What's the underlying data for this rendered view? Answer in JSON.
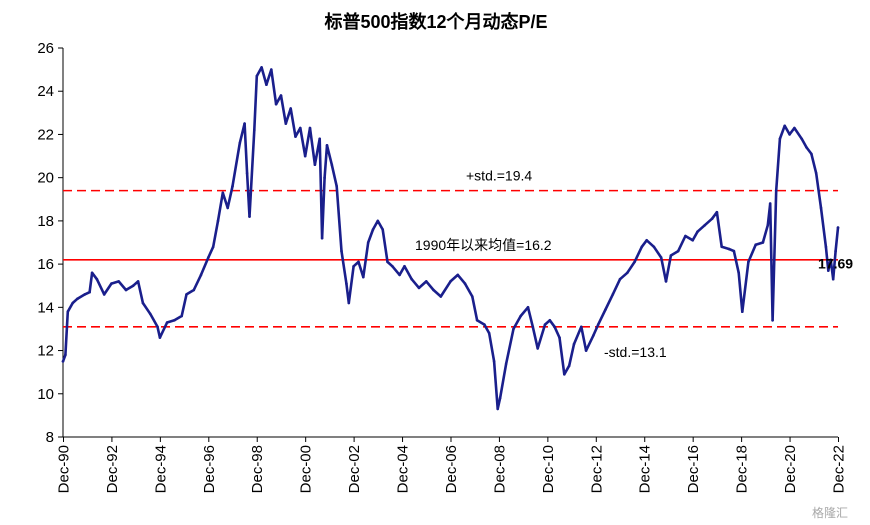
{
  "chart_data": {
    "type": "line",
    "title": "标普500指数12个月动态P/E",
    "xlabel": "",
    "ylabel": "",
    "ylim": [
      8,
      26
    ],
    "xlim": [
      1990.9,
      2022.9
    ],
    "grid": false,
    "yticks": [
      8,
      10,
      12,
      14,
      16,
      18,
      20,
      22,
      24,
      26
    ],
    "xticks": [
      {
        "label": "Dec-90",
        "x": 1990.92
      },
      {
        "label": "Dec-92",
        "x": 1992.92
      },
      {
        "label": "Dec-94",
        "x": 1994.92
      },
      {
        "label": "Dec-96",
        "x": 1996.92
      },
      {
        "label": "Dec-98",
        "x": 1998.92
      },
      {
        "label": "Dec-00",
        "x": 2000.92
      },
      {
        "label": "Dec-02",
        "x": 2002.92
      },
      {
        "label": "Dec-04",
        "x": 2004.92
      },
      {
        "label": "Dec-06",
        "x": 2006.92
      },
      {
        "label": "Dec-08",
        "x": 2008.92
      },
      {
        "label": "Dec-10",
        "x": 2010.92
      },
      {
        "label": "Dec-12",
        "x": 2012.92
      },
      {
        "label": "Dec-14",
        "x": 2014.92
      },
      {
        "label": "Dec-16",
        "x": 2016.92
      },
      {
        "label": "Dec-18",
        "x": 2018.92
      },
      {
        "label": "Dec-20",
        "x": 2020.92
      },
      {
        "label": "Dec-22",
        "x": 2022.92
      }
    ],
    "series": [
      {
        "color": "#1a1f8c",
        "points": [
          [
            1990.9,
            11.5
          ],
          [
            1991.0,
            11.8
          ],
          [
            1991.1,
            13.8
          ],
          [
            1991.3,
            14.2
          ],
          [
            1991.5,
            14.4
          ],
          [
            1991.8,
            14.6
          ],
          [
            1992.0,
            14.7
          ],
          [
            1992.1,
            15.6
          ],
          [
            1992.3,
            15.3
          ],
          [
            1992.6,
            14.6
          ],
          [
            1992.9,
            15.1
          ],
          [
            1993.2,
            15.2
          ],
          [
            1993.5,
            14.8
          ],
          [
            1993.8,
            15.0
          ],
          [
            1994.0,
            15.2
          ],
          [
            1994.2,
            14.2
          ],
          [
            1994.5,
            13.7
          ],
          [
            1994.8,
            13.1
          ],
          [
            1994.9,
            12.6
          ],
          [
            1995.2,
            13.3
          ],
          [
            1995.5,
            13.4
          ],
          [
            1995.8,
            13.6
          ],
          [
            1996.0,
            14.6
          ],
          [
            1996.3,
            14.8
          ],
          [
            1996.6,
            15.5
          ],
          [
            1996.9,
            16.3
          ],
          [
            1997.1,
            16.8
          ],
          [
            1997.3,
            18.0
          ],
          [
            1997.5,
            19.3
          ],
          [
            1997.7,
            18.6
          ],
          [
            1997.9,
            19.6
          ],
          [
            1998.2,
            21.6
          ],
          [
            1998.4,
            22.5
          ],
          [
            1998.5,
            20.2
          ],
          [
            1998.6,
            18.2
          ],
          [
            1998.8,
            22.2
          ],
          [
            1998.9,
            24.7
          ],
          [
            1999.1,
            25.1
          ],
          [
            1999.3,
            24.3
          ],
          [
            1999.5,
            25.0
          ],
          [
            1999.7,
            23.4
          ],
          [
            1999.9,
            23.8
          ],
          [
            2000.1,
            22.5
          ],
          [
            2000.3,
            23.2
          ],
          [
            2000.5,
            21.9
          ],
          [
            2000.7,
            22.3
          ],
          [
            2000.9,
            21.0
          ],
          [
            2001.1,
            22.3
          ],
          [
            2001.3,
            20.6
          ],
          [
            2001.5,
            21.8
          ],
          [
            2001.6,
            17.2
          ],
          [
            2001.7,
            20.0
          ],
          [
            2001.8,
            21.5
          ],
          [
            2002.0,
            20.6
          ],
          [
            2002.2,
            19.6
          ],
          [
            2002.4,
            16.6
          ],
          [
            2002.6,
            15.1
          ],
          [
            2002.7,
            14.2
          ],
          [
            2002.9,
            15.9
          ],
          [
            2003.1,
            16.1
          ],
          [
            2003.3,
            15.4
          ],
          [
            2003.5,
            17.0
          ],
          [
            2003.7,
            17.6
          ],
          [
            2003.9,
            18.0
          ],
          [
            2004.1,
            17.6
          ],
          [
            2004.3,
            16.1
          ],
          [
            2004.5,
            15.9
          ],
          [
            2004.8,
            15.5
          ],
          [
            2005.0,
            15.9
          ],
          [
            2005.3,
            15.3
          ],
          [
            2005.6,
            14.9
          ],
          [
            2005.9,
            15.2
          ],
          [
            2006.2,
            14.8
          ],
          [
            2006.5,
            14.5
          ],
          [
            2006.9,
            15.2
          ],
          [
            2007.2,
            15.5
          ],
          [
            2007.5,
            15.1
          ],
          [
            2007.8,
            14.5
          ],
          [
            2008.0,
            13.4
          ],
          [
            2008.3,
            13.2
          ],
          [
            2008.5,
            12.8
          ],
          [
            2008.7,
            11.5
          ],
          [
            2008.85,
            9.3
          ],
          [
            2008.95,
            9.8
          ],
          [
            2009.2,
            11.4
          ],
          [
            2009.5,
            13.0
          ],
          [
            2009.8,
            13.6
          ],
          [
            2010.1,
            14.0
          ],
          [
            2010.3,
            13.1
          ],
          [
            2010.5,
            12.1
          ],
          [
            2010.8,
            13.2
          ],
          [
            2011.0,
            13.4
          ],
          [
            2011.2,
            13.1
          ],
          [
            2011.4,
            12.6
          ],
          [
            2011.6,
            10.9
          ],
          [
            2011.8,
            11.3
          ],
          [
            2012.0,
            12.3
          ],
          [
            2012.3,
            13.1
          ],
          [
            2012.5,
            12.0
          ],
          [
            2012.8,
            12.7
          ],
          [
            2013.0,
            13.2
          ],
          [
            2013.3,
            13.9
          ],
          [
            2013.6,
            14.6
          ],
          [
            2013.9,
            15.3
          ],
          [
            2014.2,
            15.6
          ],
          [
            2014.5,
            16.1
          ],
          [
            2014.8,
            16.8
          ],
          [
            2015.0,
            17.1
          ],
          [
            2015.3,
            16.8
          ],
          [
            2015.6,
            16.3
          ],
          [
            2015.8,
            15.2
          ],
          [
            2016.0,
            16.4
          ],
          [
            2016.3,
            16.6
          ],
          [
            2016.6,
            17.3
          ],
          [
            2016.9,
            17.1
          ],
          [
            2017.1,
            17.5
          ],
          [
            2017.4,
            17.8
          ],
          [
            2017.7,
            18.1
          ],
          [
            2017.9,
            18.4
          ],
          [
            2018.1,
            16.8
          ],
          [
            2018.4,
            16.7
          ],
          [
            2018.6,
            16.6
          ],
          [
            2018.8,
            15.6
          ],
          [
            2018.95,
            13.8
          ],
          [
            2019.2,
            16.1
          ],
          [
            2019.5,
            16.9
          ],
          [
            2019.8,
            17.0
          ],
          [
            2020.0,
            17.8
          ],
          [
            2020.1,
            18.8
          ],
          [
            2020.2,
            13.4
          ],
          [
            2020.35,
            19.4
          ],
          [
            2020.5,
            21.8
          ],
          [
            2020.7,
            22.4
          ],
          [
            2020.9,
            22.0
          ],
          [
            2021.1,
            22.3
          ],
          [
            2021.4,
            21.8
          ],
          [
            2021.6,
            21.4
          ],
          [
            2021.8,
            21.1
          ],
          [
            2022.0,
            20.2
          ],
          [
            2022.2,
            18.6
          ],
          [
            2022.4,
            16.8
          ],
          [
            2022.5,
            15.7
          ],
          [
            2022.6,
            16.2
          ],
          [
            2022.7,
            15.3
          ],
          [
            2022.8,
            16.6
          ],
          [
            2022.9,
            17.69
          ]
        ]
      }
    ],
    "reference_lines": [
      {
        "y": 16.2,
        "label": "1990年以来均值=16.2",
        "color": "#ff0000",
        "style": "solid"
      },
      {
        "y": 19.4,
        "label": "+std.=19.4",
        "color": "#ff0000",
        "style": "dashed"
      },
      {
        "y": 13.1,
        "label": "-std.=13.1",
        "color": "#ff0000",
        "style": "dashed"
      }
    ],
    "annotations": [
      {
        "text": "17.69"
      }
    ]
  },
  "watermark": "格隆汇"
}
